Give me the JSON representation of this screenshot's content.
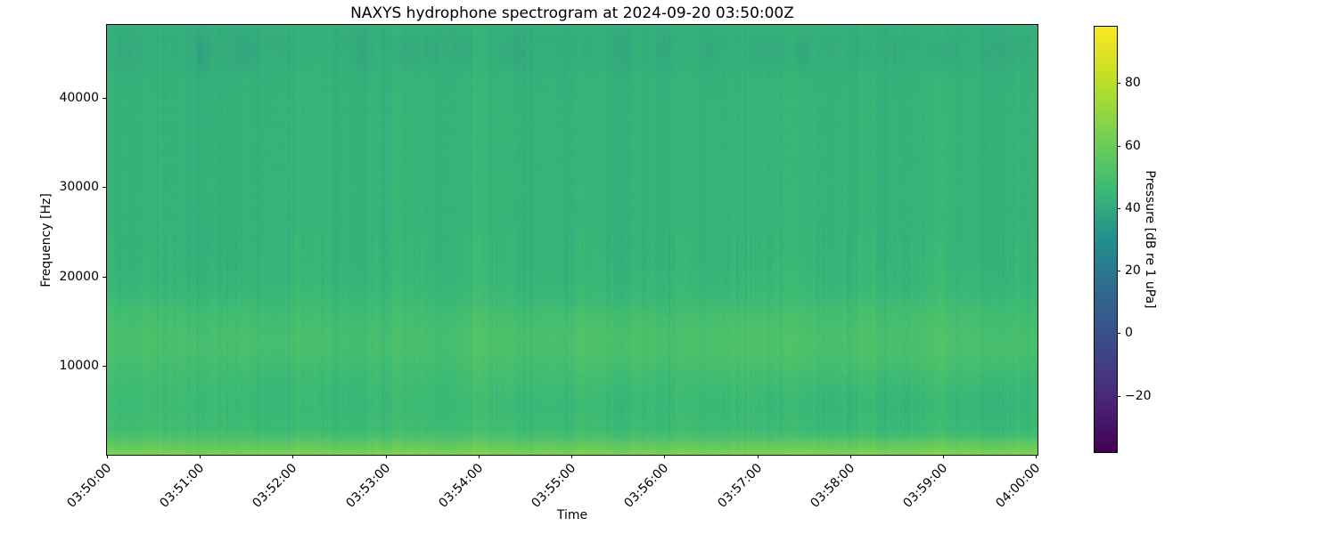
{
  "chart_data": {
    "type": "heatmap",
    "variant": "spectrogram",
    "title": "NAXYS hydrophone spectrogram at 2024-09-20 03:50:00Z",
    "xlabel": "Time",
    "ylabel": "Frequency [Hz]",
    "x_tick_labels": [
      "03:50:00",
      "03:51:00",
      "03:52:00",
      "03:53:00",
      "03:54:00",
      "03:55:00",
      "03:56:00",
      "03:57:00",
      "03:58:00",
      "03:59:00",
      "04:00:00"
    ],
    "x_range_seconds": [
      0,
      601
    ],
    "y_tick_values": [
      10000,
      20000,
      30000,
      40000
    ],
    "y_range_hz": [
      0,
      48200
    ],
    "grid": false,
    "legend": "none",
    "colorbar": {
      "label": "Pressure [dB re 1 uPa]",
      "tick_values": [
        80,
        60,
        40,
        20,
        0,
        -20
      ],
      "vmin": -38,
      "vmax": 98,
      "colormap": "viridis"
    },
    "spectral_profile_db_vs_hz": [
      [
        0,
        66
      ],
      [
        250,
        63.5
      ],
      [
        800,
        59.5
      ],
      [
        1500,
        55
      ],
      [
        2200,
        50
      ],
      [
        3000,
        47.5
      ],
      [
        5000,
        46
      ],
      [
        7500,
        46.5
      ],
      [
        9500,
        47.5
      ],
      [
        11500,
        49.5
      ],
      [
        13500,
        49.5
      ],
      [
        15500,
        48
      ],
      [
        17500,
        45.8
      ],
      [
        19500,
        44.6
      ],
      [
        22000,
        44
      ],
      [
        26000,
        43.6
      ],
      [
        32000,
        43.5
      ],
      [
        38000,
        43.5
      ],
      [
        42000,
        43.2
      ],
      [
        44500,
        42.2
      ],
      [
        46500,
        41.8
      ],
      [
        48200,
        42.6
      ]
    ],
    "level_events": [
      {
        "t_s": [
          0,
          88
        ],
        "f_hz": [
          2500,
          16500
        ],
        "db": 1.3
      },
      {
        "t_s": [
          92,
          150
        ],
        "f_hz": [
          1500,
          9000
        ],
        "db": -0.7
      },
      {
        "t_s": [
          235,
          352
        ],
        "f_hz": [
          8000,
          16000
        ],
        "db": 1.0
      },
      {
        "t_s": [
          390,
          575
        ],
        "f_hz": [
          8000,
          16500
        ],
        "db": 1.2
      },
      {
        "t_s": [
          300,
          420
        ],
        "f_hz": [
          10000,
          15000
        ],
        "db": 0.8
      },
      {
        "t_s": [
          430,
          601
        ],
        "f_hz": [
          2000,
          8500
        ],
        "db": -1.2
      },
      {
        "t_s": [
          455,
          601
        ],
        "f_hz": [
          0,
          1200
        ],
        "db": 0.8
      }
    ],
    "texture": {
      "column_noise_db": 0.85,
      "slow_band_noise_db": 1.1,
      "pixel_noise_db": 0.55,
      "highband_blotch_db": 1.1
    }
  }
}
